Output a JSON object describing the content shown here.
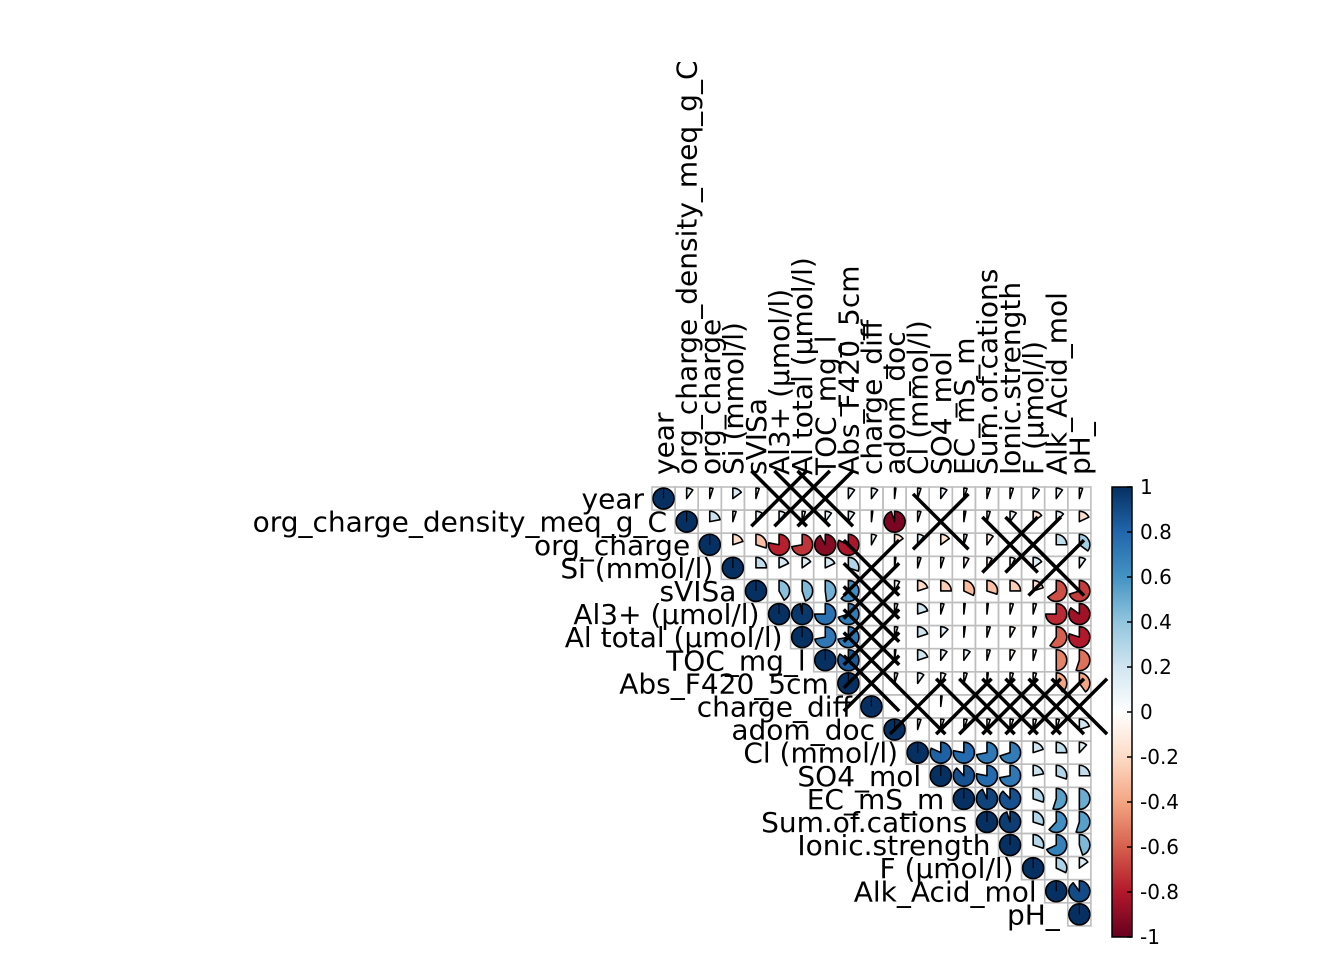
{
  "chart_data": {
    "type": "heatmap",
    "style": "upper-triangle correlation plot, pie glyphs",
    "variables": [
      "year",
      "org_charge_density_meq_g_C",
      "org_charge",
      "Si (mmol/l)",
      "sVISa",
      "Al3+ (µmol/l)",
      "Al total (µmol/l)",
      "TOC_mg_l",
      "Abs_F420_5cm",
      "charge_diff",
      "adom_doc",
      "Cl (mmol/l)",
      "SO4_mol",
      "EC_mS_m",
      "Sum.of.cations",
      "Ionic.strength",
      "F (µmol/l)",
      "Alk_Acid_mol",
      "pH_"
    ],
    "row_labels": [
      "year",
      "org_charge_density_meq_g_C",
      "org_charge",
      "Si (mmol/l)",
      "sVISa",
      "Al3+ (µmol/l)",
      "Al total (µmol/l)",
      "TOC_mg_l",
      "Abs_F420_5cm",
      "charge_diff",
      "adom_doc",
      "Cl (mmol/l)",
      "SO4_mol",
      "EC_mS_m",
      "Sum.of.cations",
      "Ionic.strength",
      "F (µmol/l)",
      "Alk_Acid_mol",
      "pH_"
    ],
    "col_labels": [
      "year",
      "org_charge_density_meq_g_C",
      "org_charge",
      "Si (mmol/l)",
      "sVISa",
      "Al3+ (µmol/l)",
      "Al total (µmol/l)",
      "TOC_mg_l",
      "Abs_F420_5cm",
      "charge_diff",
      "adom_doc",
      "Cl (mmol/l)",
      "SO4_mol",
      "EC_mS_m",
      "Sum.of.cations",
      "Ionic.strength",
      "F (µmol/l)",
      "Alk_Acid_mol",
      "pH_"
    ],
    "matrix": [
      [
        1,
        0.1,
        -0.05,
        0.15,
        0.05,
        null,
        null,
        null,
        0.1,
        0.1,
        0.02,
        -0.05,
        0.1,
        0.05,
        -0.05,
        0.05,
        0.1,
        0.1,
        -0.05
      ],
      [
        null,
        1,
        0.22,
        0.05,
        0.1,
        0.1,
        -0.05,
        0.1,
        0.1,
        0.02,
        -0.95,
        0.05,
        null,
        0.03,
        0.05,
        0.1,
        -0.15,
        0.12,
        -0.18
      ],
      [
        null,
        null,
        1,
        -0.2,
        -0.3,
        -0.78,
        -0.72,
        -0.92,
        -0.82,
        0.08,
        -0.15,
        0.1,
        -0.15,
        0.05,
        -0.1,
        null,
        null,
        0.25,
        0.35
      ],
      [
        null,
        null,
        null,
        1,
        0.25,
        0.18,
        0.15,
        0.18,
        0.3,
        null,
        0.02,
        0.05,
        0.05,
        -0.08,
        -0.08,
        0.08,
        0.15,
        null,
        0.1
      ],
      [
        null,
        null,
        null,
        null,
        1,
        0.42,
        0.45,
        0.48,
        0.62,
        null,
        0.08,
        -0.2,
        -0.25,
        -0.32,
        -0.3,
        -0.25,
        -0.2,
        -0.65,
        -0.7
      ],
      [
        null,
        null,
        null,
        null,
        null,
        1,
        0.97,
        0.75,
        0.7,
        null,
        0.05,
        0.2,
        0.05,
        0.02,
        0.02,
        -0.05,
        -0.05,
        -0.75,
        -0.85
      ],
      [
        null,
        null,
        null,
        null,
        null,
        null,
        1,
        0.72,
        0.72,
        null,
        0.05,
        0.2,
        0.12,
        0.02,
        0.05,
        -0.08,
        -0.05,
        -0.6,
        -0.8
      ],
      [
        null,
        null,
        null,
        null,
        null,
        null,
        null,
        1,
        0.85,
        null,
        0.02,
        0.2,
        0.1,
        0.1,
        0.05,
        -0.08,
        -0.05,
        -0.5,
        -0.55
      ],
      [
        null,
        null,
        null,
        null,
        null,
        null,
        null,
        null,
        1,
        null,
        0.05,
        0.1,
        0.08,
        0.05,
        -0.02,
        -0.05,
        -0.05,
        -0.4,
        -0.4
      ],
      [
        null,
        null,
        null,
        null,
        null,
        null,
        null,
        null,
        null,
        1,
        null,
        null,
        0.02,
        null,
        null,
        null,
        null,
        null,
        null
      ],
      [
        null,
        null,
        null,
        null,
        null,
        null,
        null,
        null,
        null,
        null,
        1,
        0.05,
        0.05,
        -0.05,
        0.05,
        0.05,
        0.05,
        0.05,
        0.2
      ],
      [
        null,
        null,
        null,
        null,
        null,
        null,
        null,
        null,
        null,
        null,
        null,
        1,
        0.82,
        0.78,
        0.72,
        0.7,
        0.2,
        0.25,
        0.12
      ],
      [
        null,
        null,
        null,
        null,
        null,
        null,
        null,
        null,
        null,
        null,
        null,
        null,
        1,
        0.88,
        0.78,
        0.72,
        0.22,
        0.3,
        0.25
      ],
      [
        null,
        null,
        null,
        null,
        null,
        null,
        null,
        null,
        null,
        null,
        null,
        null,
        null,
        1,
        0.93,
        0.88,
        0.3,
        0.55,
        0.5
      ],
      [
        null,
        null,
        null,
        null,
        null,
        null,
        null,
        null,
        null,
        null,
        null,
        null,
        null,
        null,
        1,
        0.95,
        0.3,
        0.62,
        0.55
      ],
      [
        null,
        null,
        null,
        null,
        null,
        null,
        null,
        null,
        null,
        null,
        null,
        null,
        null,
        null,
        null,
        1,
        0.3,
        0.68,
        0.45
      ],
      [
        null,
        null,
        null,
        null,
        null,
        null,
        null,
        null,
        null,
        null,
        null,
        null,
        null,
        null,
        null,
        null,
        1,
        0.32,
        0.15
      ],
      [
        null,
        null,
        null,
        null,
        null,
        null,
        null,
        null,
        null,
        null,
        null,
        null,
        null,
        null,
        null,
        null,
        null,
        1,
        0.9
      ],
      [
        null,
        null,
        null,
        null,
        null,
        null,
        null,
        null,
        null,
        null,
        null,
        null,
        null,
        null,
        null,
        null,
        null,
        null,
        1
      ]
    ],
    "crossed_cells": [
      [
        0,
        5
      ],
      [
        0,
        6
      ],
      [
        0,
        7
      ],
      [
        1,
        12
      ],
      [
        2,
        15
      ],
      [
        2,
        16
      ],
      [
        3,
        17
      ],
      [
        3,
        9
      ],
      [
        4,
        9
      ],
      [
        5,
        9
      ],
      [
        6,
        9
      ],
      [
        7,
        9
      ],
      [
        8,
        9
      ],
      [
        9,
        11
      ],
      [
        9,
        13
      ],
      [
        9,
        14
      ],
      [
        9,
        15
      ],
      [
        9,
        16
      ],
      [
        9,
        17
      ],
      [
        9,
        18
      ]
    ],
    "colorbar": {
      "range": [
        -1,
        1
      ],
      "ticks": [
        "1",
        "0.8",
        "0.6",
        "0.4",
        "0.2",
        "0",
        "-0.2",
        "-0.4",
        "-0.6",
        "-0.8",
        "-1"
      ],
      "colors": [
        "#67001f",
        "#b2182b",
        "#d6604d",
        "#f4a582",
        "#fddbc7",
        "#ffffff",
        "#d1e5f0",
        "#92c5de",
        "#4393c3",
        "#2166ac",
        "#053061"
      ],
      "placement": "right"
    },
    "grid": true,
    "colors": {
      "grid": "#bebebe",
      "glyph_outline": "#000000",
      "cross": "#000000"
    }
  }
}
